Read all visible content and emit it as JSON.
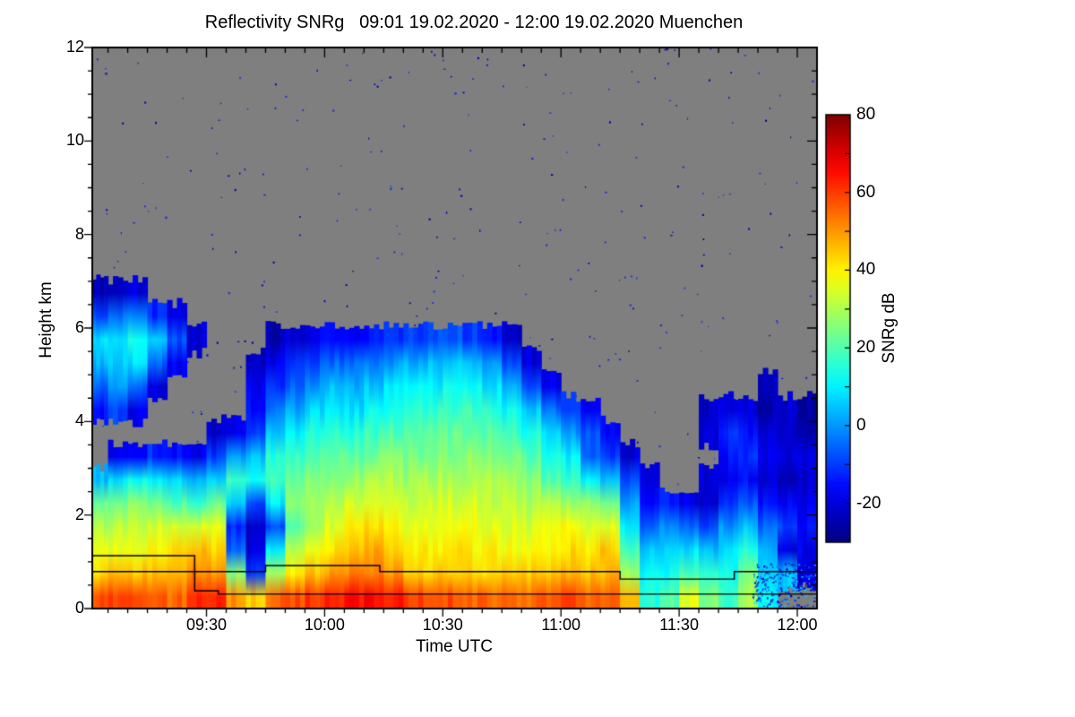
{
  "title": "Reflectivity SNRg   09:01 19.02.2020 - 12:00 19.02.2020 Muenchen",
  "axes": {
    "x": {
      "label": "Time UTC",
      "tick_labels": [
        "09:30",
        "10:00",
        "10:30",
        "11:00",
        "11:30",
        "12:00"
      ],
      "tick_minutes_after_0900": [
        30,
        60,
        90,
        120,
        150,
        180
      ],
      "minor_step_min": 5,
      "domain_minutes_after_0900": [
        1,
        185
      ]
    },
    "y": {
      "label": "Height km",
      "tick_values": [
        0,
        2,
        4,
        6,
        8,
        10,
        12
      ],
      "minor_step_km": 0.5,
      "range_km": [
        0,
        12
      ]
    }
  },
  "colorbar": {
    "label": "SNRg dB",
    "tick_labels": [
      "-20",
      "0",
      "20",
      "40",
      "60",
      "80"
    ],
    "tick_values": [
      -20,
      0,
      20,
      40,
      60,
      80
    ],
    "minor_step_db": 10,
    "range_db": [
      -30,
      80
    ],
    "colormap": "jet"
  },
  "colors": {
    "background": "#ffffff",
    "no_signal_gray": "#7f7f7f",
    "frame": "#000000",
    "overlay_line": "#000000",
    "speckle_blue": "#0000b4"
  },
  "chart_data": {
    "type": "heatmap",
    "title": "Reflectivity SNRg 09:01 19.02.2020 - 12:00 19.02.2020 Muenchen",
    "xlabel": "Time UTC",
    "ylabel": "Height km",
    "value_label": "SNRg dB",
    "value_range": [
      -30,
      80
    ],
    "no_data": "gray",
    "col_times": [
      "09:00",
      "09:05",
      "09:10",
      "09:15",
      "09:20",
      "09:25",
      "09:30",
      "09:35",
      "09:40",
      "09:45",
      "09:50",
      "09:55",
      "10:00",
      "10:05",
      "10:10",
      "10:15",
      "10:20",
      "10:25",
      "10:30",
      "10:35",
      "10:40",
      "10:45",
      "10:50",
      "10:55",
      "11:00",
      "11:05",
      "11:10",
      "11:15",
      "11:20",
      "11:25",
      "11:30",
      "11:35",
      "11:40",
      "11:45",
      "11:50",
      "11:55",
      "12:00"
    ],
    "heights_km": [
      6.75,
      6.25,
      5.75,
      5.25,
      4.75,
      4.25,
      3.75,
      3.25,
      2.75,
      2.25,
      1.75,
      1.25,
      0.75,
      0.25
    ],
    "snr_db": [
      [
        -24,
        -22,
        -20,
        null,
        null,
        null,
        null,
        null,
        null,
        null,
        null,
        null,
        null,
        null,
        null,
        null,
        null,
        null,
        null,
        null,
        null,
        null,
        null,
        null,
        null,
        null,
        null,
        null,
        null,
        null,
        null,
        null,
        null,
        null,
        null,
        null,
        null
      ],
      [
        -8,
        -5,
        -4,
        -12,
        -18,
        null,
        null,
        null,
        null,
        null,
        null,
        null,
        null,
        null,
        null,
        null,
        null,
        null,
        null,
        null,
        null,
        null,
        null,
        null,
        null,
        null,
        null,
        null,
        null,
        null,
        null,
        null,
        null,
        null,
        null,
        null,
        null
      ],
      [
        8,
        10,
        12,
        6,
        -8,
        -22,
        null,
        null,
        null,
        -25,
        -20,
        -18,
        -15,
        -16,
        -14,
        -12,
        -10,
        -8,
        -6,
        -10,
        -15,
        -22,
        null,
        null,
        null,
        null,
        null,
        null,
        null,
        null,
        null,
        null,
        null,
        null,
        null,
        null,
        null
      ],
      [
        4,
        6,
        8,
        -5,
        -18,
        null,
        null,
        null,
        -22,
        -18,
        -12,
        -8,
        -5,
        -6,
        -4,
        0,
        2,
        4,
        5,
        4,
        0,
        -10,
        -20,
        null,
        null,
        null,
        null,
        null,
        null,
        null,
        null,
        null,
        null,
        null,
        null,
        null,
        null
      ],
      [
        -5,
        0,
        -6,
        -20,
        null,
        null,
        null,
        null,
        -18,
        -12,
        -5,
        0,
        4,
        2,
        5,
        8,
        10,
        10,
        12,
        12,
        8,
        4,
        -8,
        -18,
        null,
        null,
        null,
        null,
        null,
        null,
        null,
        null,
        null,
        null,
        -25,
        null,
        null
      ],
      [
        -15,
        -10,
        -18,
        null,
        null,
        null,
        null,
        null,
        -15,
        -5,
        2,
        8,
        10,
        8,
        12,
        14,
        15,
        16,
        17,
        18,
        15,
        12,
        5,
        -5,
        -12,
        -18,
        null,
        null,
        null,
        null,
        null,
        -22,
        -18,
        -20,
        -24,
        -22,
        -25
      ],
      [
        null,
        null,
        null,
        null,
        null,
        null,
        -22,
        -18,
        -10,
        5,
        10,
        14,
        16,
        15,
        18,
        20,
        20,
        22,
        22,
        22,
        21,
        18,
        14,
        8,
        0,
        -8,
        -15,
        null,
        null,
        null,
        null,
        -20,
        -12,
        -15,
        -20,
        -22,
        -24
      ],
      [
        null,
        -18,
        -15,
        -12,
        -15,
        -18,
        -10,
        0,
        5,
        15,
        18,
        20,
        22,
        22,
        24,
        25,
        24,
        26,
        26,
        27,
        26,
        24,
        20,
        14,
        10,
        -5,
        -10,
        -20,
        null,
        null,
        null,
        null,
        -15,
        -12,
        -18,
        -20,
        -20
      ],
      [
        4,
        8,
        12,
        10,
        6,
        2,
        8,
        18,
        12,
        20,
        22,
        25,
        26,
        28,
        30,
        30,
        28,
        30,
        30,
        31,
        30,
        28,
        26,
        20,
        16,
        10,
        5,
        -10,
        -18,
        null,
        null,
        -20,
        -18,
        -15,
        -20,
        -22,
        -22
      ],
      [
        22,
        25,
        26,
        24,
        20,
        18,
        22,
        8,
        -10,
        10,
        25,
        28,
        30,
        34,
        36,
        35,
        32,
        33,
        34,
        34,
        33,
        32,
        30,
        30,
        28,
        26,
        25,
        2,
        -15,
        -12,
        -18,
        -20,
        -10,
        -8,
        -14,
        -16,
        -18
      ],
      [
        30,
        32,
        33,
        34,
        33,
        35,
        36,
        -12,
        -22,
        -8,
        22,
        30,
        35,
        40,
        42,
        40,
        36,
        36,
        38,
        37,
        36,
        35,
        34,
        36,
        38,
        36,
        35,
        10,
        -5,
        0,
        -5,
        -8,
        0,
        5,
        -6,
        -10,
        -15
      ],
      [
        36,
        37,
        38,
        40,
        42,
        45,
        44,
        -5,
        -20,
        10,
        30,
        38,
        42,
        46,
        48,
        45,
        40,
        40,
        41,
        40,
        40,
        38,
        38,
        40,
        42,
        42,
        44,
        18,
        5,
        6,
        8,
        5,
        8,
        15,
        2,
        -20,
        -18
      ],
      [
        42,
        44,
        45,
        46,
        48,
        52,
        50,
        25,
        -10,
        30,
        40,
        45,
        50,
        52,
        54,
        50,
        46,
        44,
        45,
        44,
        43,
        45,
        44,
        44,
        46,
        45,
        46,
        30,
        10,
        12,
        20,
        15,
        12,
        25,
        8,
        5,
        -20
      ],
      [
        58,
        60,
        60,
        58,
        55,
        62,
        62,
        50,
        45,
        55,
        58,
        60,
        62,
        65,
        66,
        64,
        60,
        58,
        58,
        56,
        55,
        55,
        55,
        56,
        58,
        56,
        55,
        45,
        15,
        20,
        35,
        25,
        18,
        30,
        12,
        null,
        null
      ]
    ],
    "overlay_lines": [
      {
        "name": "upper-range-boundary",
        "points_min_km": [
          [
            1,
            0.79
          ],
          [
            45,
            0.79
          ],
          [
            45,
            0.92
          ],
          [
            74,
            0.92
          ],
          [
            74,
            0.79
          ],
          [
            135,
            0.79
          ],
          [
            135,
            0.63
          ],
          [
            164,
            0.63
          ],
          [
            164,
            0.79
          ],
          [
            185,
            0.79
          ]
        ]
      },
      {
        "name": "lower-range-boundary",
        "points_min_km": [
          [
            1,
            1.13
          ],
          [
            27,
            1.13
          ],
          [
            27,
            0.38
          ],
          [
            33,
            0.38
          ],
          [
            33,
            0.31
          ],
          [
            185,
            0.31
          ]
        ]
      }
    ]
  }
}
